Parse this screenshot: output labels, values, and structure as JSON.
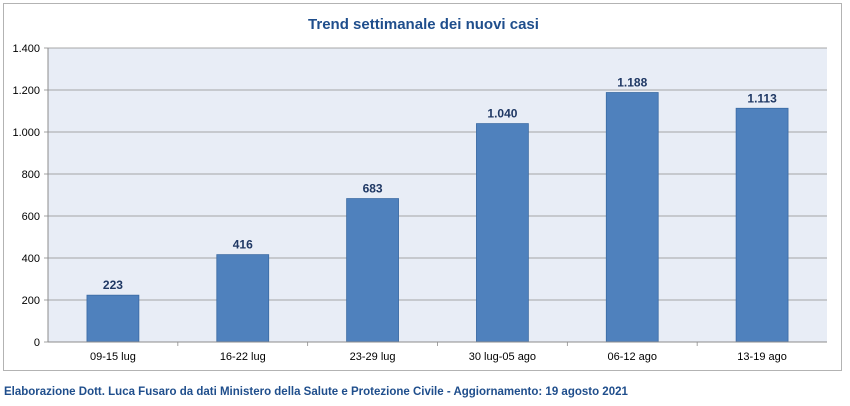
{
  "chart_data": {
    "type": "bar",
    "title": "Trend settimanale dei nuovi casi",
    "categories": [
      "09-15 lug",
      "16-22 lug",
      "23-29 lug",
      "30 lug-05 ago",
      "06-12 ago",
      "13-19 ago"
    ],
    "values": [
      223,
      416,
      683,
      1040,
      1188,
      1113
    ],
    "value_labels": [
      "223",
      "416",
      "683",
      "1.040",
      "1.188",
      "1.113"
    ],
    "yticks": [
      0,
      200,
      400,
      600,
      800,
      1000,
      1200,
      1400
    ],
    "ytick_labels": [
      "0",
      "200",
      "400",
      "600",
      "800",
      "1.000",
      "1.200",
      "1.400"
    ],
    "ylim": [
      0,
      1400
    ],
    "xlabel": "",
    "ylabel": "",
    "grid": true,
    "legend": "none",
    "bar_color": "#4f81bd",
    "plot_background": "#e8edf6"
  },
  "footer": "Elaborazione Dott. Luca Fusaro da dati Ministero della Salute e Protezione Civile - Aggiornamento: 19 agosto 2021"
}
